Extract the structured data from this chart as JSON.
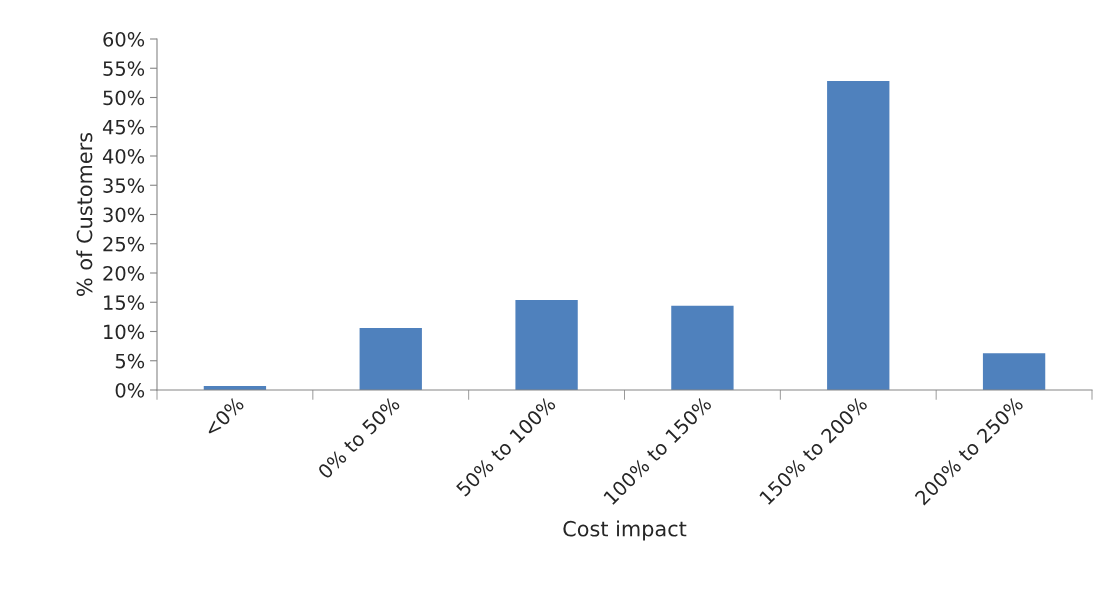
{
  "chart_data": {
    "type": "bar",
    "xlabel": "Cost impact",
    "ylabel": "% of Customers",
    "categories": [
      "<0%",
      "0% to 50%",
      "50% to 100%",
      "100% to 150%",
      "150% to 200%",
      "200% to 250%"
    ],
    "values": [
      0.7,
      10.6,
      15.4,
      14.4,
      52.8,
      6.3
    ],
    "color": "#4f81bd",
    "ylim": [
      0,
      60
    ],
    "yticks": [
      {
        "value": 0,
        "label": "0%"
      },
      {
        "value": 5,
        "label": "5%"
      },
      {
        "value": 10,
        "label": "10%"
      },
      {
        "value": 15,
        "label": "15%"
      },
      {
        "value": 20,
        "label": "20%"
      },
      {
        "value": 25,
        "label": "25%"
      },
      {
        "value": 30,
        "label": "30%"
      },
      {
        "value": 35,
        "label": "35%"
      },
      {
        "value": 40,
        "label": "40%"
      },
      {
        "value": 45,
        "label": "45%"
      },
      {
        "value": 50,
        "label": "50%"
      },
      {
        "value": 55,
        "label": "55%"
      },
      {
        "value": 60,
        "label": "60%"
      }
    ],
    "grid": false,
    "legend": false
  }
}
